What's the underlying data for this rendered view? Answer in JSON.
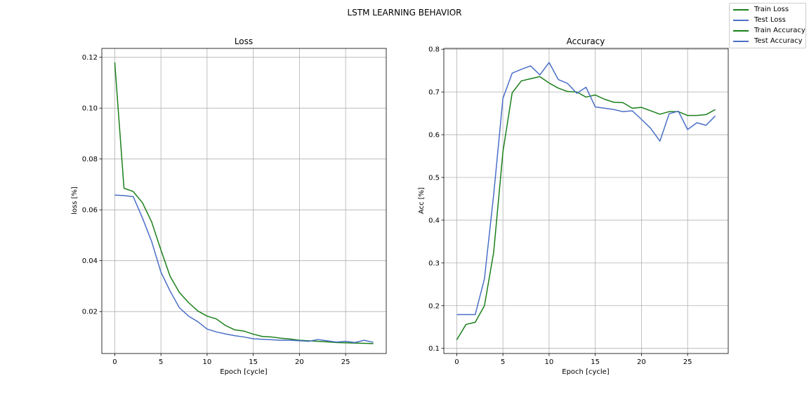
{
  "figure": {
    "title": "LSTM LEARNING BEHAVIOR"
  },
  "legend": {
    "placement": "top-right",
    "entries": [
      {
        "label": "Train Loss",
        "color": "#1a7f1a"
      },
      {
        "label": "Test Loss",
        "color": "#4a6fc7"
      },
      {
        "label": "Train Accuracy",
        "color": "#1a7f1a"
      },
      {
        "label": "Test Accuracy",
        "color": "#4a6fc7"
      }
    ]
  },
  "chart_data": [
    {
      "type": "line",
      "title": "Loss",
      "xlabel": "Epoch [cycle]",
      "ylabel": "loss [%]",
      "grid": true,
      "xlim": [
        -1.4,
        29.4
      ],
      "ylim": [
        0.0035,
        0.1235
      ],
      "xticks": [
        0,
        5,
        10,
        15,
        20,
        25
      ],
      "yticks": [
        0.02,
        0.04,
        0.06,
        0.08,
        0.1,
        0.12
      ],
      "ytick_labels": [
        "0.02",
        "0.04",
        "0.06",
        "0.08",
        "0.10",
        "0.12"
      ],
      "x": [
        0,
        1,
        2,
        3,
        4,
        5,
        6,
        7,
        8,
        9,
        10,
        11,
        12,
        13,
        14,
        15,
        16,
        17,
        18,
        19,
        20,
        21,
        22,
        23,
        24,
        25,
        26,
        27,
        28
      ],
      "series": [
        {
          "name": "Train Loss",
          "color": "#1a7f1a",
          "values": [
            0.118,
            0.0685,
            0.0672,
            0.0628,
            0.0552,
            0.0442,
            0.0338,
            0.0275,
            0.0235,
            0.0202,
            0.0182,
            0.0171,
            0.0145,
            0.0128,
            0.0123,
            0.0111,
            0.0102,
            0.01,
            0.0095,
            0.0092,
            0.0087,
            0.0085,
            0.0083,
            0.0081,
            0.0078,
            0.0077,
            0.0076,
            0.0075,
            0.0074
          ]
        },
        {
          "name": "Test Loss",
          "color": "#4a6fc7",
          "values": [
            0.0658,
            0.0656,
            0.0652,
            0.0568,
            0.0475,
            0.0355,
            0.028,
            0.0215,
            0.0182,
            0.016,
            0.0131,
            0.012,
            0.0112,
            0.0105,
            0.01,
            0.0093,
            0.0091,
            0.0089,
            0.0087,
            0.0087,
            0.0085,
            0.0083,
            0.009,
            0.0085,
            0.008,
            0.0083,
            0.0078,
            0.0087,
            0.0079
          ]
        }
      ]
    },
    {
      "type": "line",
      "title": "Accuracy",
      "xlabel": "Epoch [cycle]",
      "ylabel": "Acc [%]",
      "grid": true,
      "xlim": [
        -1.4,
        29.4
      ],
      "ylim": [
        0.088,
        0.802
      ],
      "xticks": [
        0,
        5,
        10,
        15,
        20,
        25
      ],
      "yticks": [
        0.1,
        0.2,
        0.3,
        0.4,
        0.5,
        0.6,
        0.7,
        0.8
      ],
      "ytick_labels": [
        "0.1",
        "0.2",
        "0.3",
        "0.4",
        "0.5",
        "0.6",
        "0.7",
        "0.8"
      ],
      "x": [
        0,
        1,
        2,
        3,
        4,
        5,
        6,
        7,
        8,
        9,
        10,
        11,
        12,
        13,
        14,
        15,
        16,
        17,
        18,
        19,
        20,
        21,
        22,
        23,
        24,
        25,
        26,
        27,
        28
      ],
      "series": [
        {
          "name": "Train Accuracy",
          "color": "#1a7f1a",
          "values": [
            0.12,
            0.156,
            0.161,
            0.2,
            0.325,
            0.56,
            0.698,
            0.726,
            0.731,
            0.736,
            0.721,
            0.709,
            0.701,
            0.7,
            0.688,
            0.693,
            0.683,
            0.676,
            0.675,
            0.662,
            0.664,
            0.656,
            0.648,
            0.654,
            0.654,
            0.645,
            0.645,
            0.647,
            0.659
          ]
        },
        {
          "name": "Test Accuracy",
          "color": "#4a6fc7",
          "values": [
            0.179,
            0.179,
            0.179,
            0.263,
            0.46,
            0.685,
            0.744,
            0.753,
            0.761,
            0.74,
            0.769,
            0.729,
            0.72,
            0.697,
            0.711,
            0.665,
            0.662,
            0.659,
            0.654,
            0.656,
            0.636,
            0.615,
            0.585,
            0.649,
            0.655,
            0.612,
            0.628,
            0.622,
            0.644
          ]
        }
      ]
    }
  ]
}
